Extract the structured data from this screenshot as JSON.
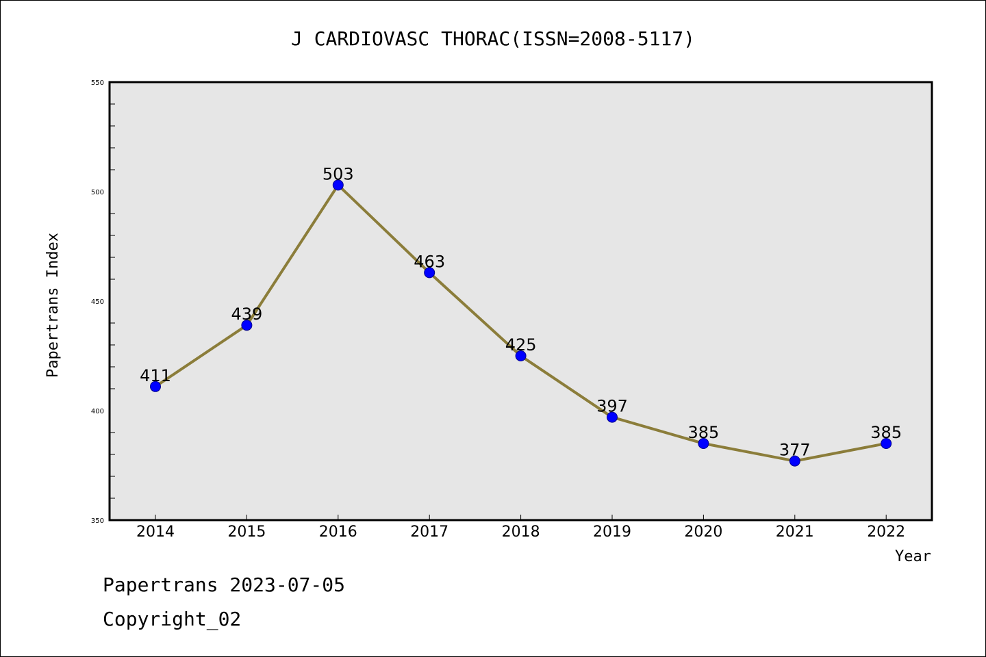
{
  "chart_data": {
    "type": "line",
    "title": "J CARDIOVASC THORAC(ISSN=2008-5117)",
    "xlabel": "Year",
    "ylabel": "Papertrans Index",
    "categories": [
      "2014",
      "2015",
      "2016",
      "2017",
      "2018",
      "2019",
      "2020",
      "2021",
      "2022"
    ],
    "values": [
      411,
      439,
      503,
      463,
      425,
      397,
      385,
      377,
      385
    ],
    "ylim": [
      350,
      550
    ],
    "yticks": [
      350,
      400,
      450,
      500,
      550
    ],
    "line_color": "#8b7d3a",
    "marker_color": "#0000ff",
    "background_color": "#e6e6e6",
    "grid": false
  },
  "footer": {
    "line1": "Papertrans 2023-07-05",
    "line2": "Copyright_02"
  }
}
